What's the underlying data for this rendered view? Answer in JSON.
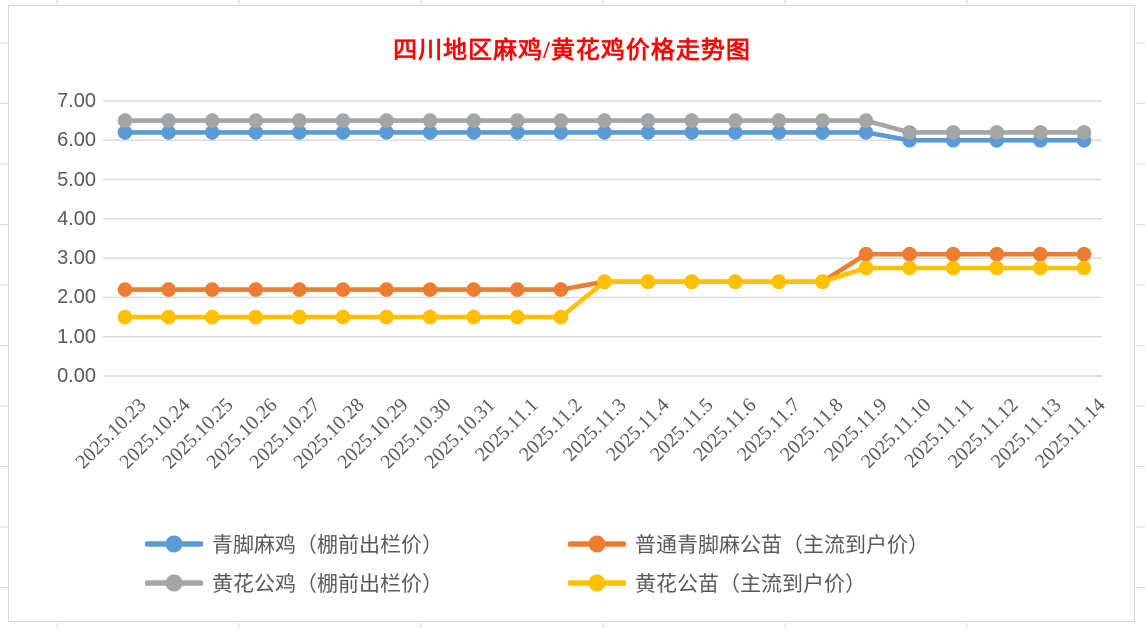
{
  "chart_data": {
    "type": "line",
    "title": "四川地区麻鸡/黄花鸡价格走势图",
    "title_color": "#FF0000",
    "axis_text_color": "#595959",
    "gridline_color": "#D9D9D9",
    "grid": true,
    "legend_position": "bottom",
    "ylim": [
      0,
      7
    ],
    "y_ticks": [
      "7.00",
      "6.00",
      "5.00",
      "4.00",
      "3.00",
      "2.00",
      "1.00",
      "0.00"
    ],
    "categories": [
      "2025.10.23",
      "2025.10.24",
      "2025.10.25",
      "2025.10.26",
      "2025.10.27",
      "2025.10.28",
      "2025.10.29",
      "2025.10.30",
      "2025.10.31",
      "2025.11.1",
      "2025.11.2",
      "2025.11.3",
      "2025.11.4",
      "2025.11.5",
      "2025.11.6",
      "2025.11.7",
      "2025.11.8",
      "2025.11.9",
      "2025.11.10",
      "2025.11.11",
      "2025.11.12",
      "2025.11.13",
      "2025.11.14"
    ],
    "series": [
      {
        "name": "青脚麻鸡（棚前出栏价）",
        "color": "#5B9BD5",
        "values": [
          6.2,
          6.2,
          6.2,
          6.2,
          6.2,
          6.2,
          6.2,
          6.2,
          6.2,
          6.2,
          6.2,
          6.2,
          6.2,
          6.2,
          6.2,
          6.2,
          6.2,
          6.2,
          6.0,
          6.0,
          6.0,
          6.0,
          6.0
        ]
      },
      {
        "name": "普通青脚麻公苗（主流到户价）",
        "color": "#ED7D31",
        "values": [
          2.2,
          2.2,
          2.2,
          2.2,
          2.2,
          2.2,
          2.2,
          2.2,
          2.2,
          2.2,
          2.2,
          2.4,
          2.4,
          2.4,
          2.4,
          2.4,
          2.4,
          3.1,
          3.1,
          3.1,
          3.1,
          3.1,
          3.1
        ]
      },
      {
        "name": "黄花公鸡（棚前出栏价）",
        "color": "#A5A5A5",
        "values": [
          6.5,
          6.5,
          6.5,
          6.5,
          6.5,
          6.5,
          6.5,
          6.5,
          6.5,
          6.5,
          6.5,
          6.5,
          6.5,
          6.5,
          6.5,
          6.5,
          6.5,
          6.5,
          6.2,
          6.2,
          6.2,
          6.2,
          6.2
        ]
      },
      {
        "name": "黄花公苗（主流到户价）",
        "color": "#FFC000",
        "values": [
          1.5,
          1.5,
          1.5,
          1.5,
          1.5,
          1.5,
          1.5,
          1.5,
          1.5,
          1.5,
          1.5,
          2.4,
          2.4,
          2.4,
          2.4,
          2.4,
          2.4,
          2.75,
          2.75,
          2.75,
          2.75,
          2.75,
          2.75
        ]
      }
    ]
  }
}
